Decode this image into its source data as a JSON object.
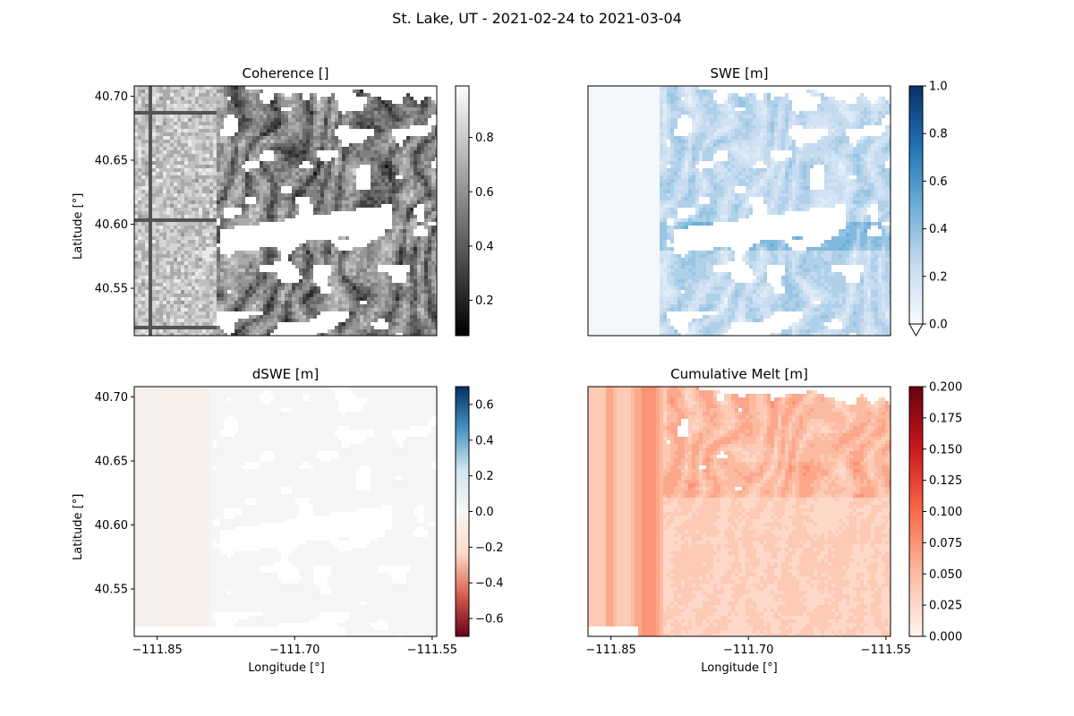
{
  "figure": {
    "suptitle": "St. Lake, UT - 2021-02-24 to 2021-03-04"
  },
  "chart_data": [
    {
      "type": "heatmap",
      "title": "Coherence []",
      "xlabel": "",
      "ylabel": "Latitude [°]",
      "xlim": [
        -111.875,
        -111.545
      ],
      "ylim": [
        40.513,
        40.708
      ],
      "yticks": [
        40.55,
        40.6,
        40.65,
        40.7
      ],
      "ytick_labels": [
        "40.55",
        "40.60",
        "40.65",
        "40.70"
      ],
      "xticks": [],
      "xtick_labels": [],
      "colormap": "Greys_r",
      "colorbar": {
        "min": 0.07,
        "max": 0.99,
        "ticks": [
          0.2,
          0.4,
          0.6,
          0.8
        ],
        "labels": [
          "0.2",
          "0.4",
          "0.6",
          "0.8"
        ],
        "extend": "none"
      },
      "colors": [
        "#000000",
        "#ffffff"
      ]
    },
    {
      "type": "heatmap",
      "title": "SWE [m]",
      "xlabel": "",
      "ylabel": "",
      "xlim": [
        -111.875,
        -111.545
      ],
      "ylim": [
        40.513,
        40.708
      ],
      "yticks": [],
      "ytick_labels": [],
      "xticks": [],
      "xtick_labels": [],
      "colormap": "Blues",
      "colorbar": {
        "min": 0.0,
        "max": 1.0,
        "ticks": [
          0.0,
          0.2,
          0.4,
          0.6,
          0.8,
          1.0
        ],
        "labels": [
          "0.0",
          "0.2",
          "0.4",
          "0.6",
          "0.8",
          "1.0"
        ],
        "extend": "min"
      },
      "colors": [
        "#f7fbff",
        "#c6dbef",
        "#6baed6",
        "#2171b5",
        "#08306b"
      ]
    },
    {
      "type": "heatmap",
      "title": "dSWE [m]",
      "xlabel": "Longitude [°]",
      "ylabel": "Latitude [°]",
      "xlim": [
        -111.875,
        -111.545
      ],
      "ylim": [
        40.513,
        40.708
      ],
      "yticks": [
        40.55,
        40.6,
        40.65,
        40.7
      ],
      "ytick_labels": [
        "40.55",
        "40.60",
        "40.65",
        "40.70"
      ],
      "xticks": [
        -111.85,
        -111.7,
        -111.55
      ],
      "xtick_labels": [
        "−111.85",
        "−111.70",
        "−111.55"
      ],
      "colormap": "RdBu",
      "colorbar": {
        "min": -0.7,
        "max": 0.7,
        "ticks": [
          -0.6,
          -0.4,
          -0.2,
          0.0,
          0.2,
          0.4,
          0.6
        ],
        "labels": [
          "−0.6",
          "−0.4",
          "−0.2",
          "0.0",
          "0.2",
          "0.4",
          "0.6"
        ],
        "extend": "none"
      },
      "colors": [
        "#67001f",
        "#d6604d",
        "#fddbc7",
        "#f7f7f7",
        "#d1e5f0",
        "#4393c3",
        "#053061"
      ]
    },
    {
      "type": "heatmap",
      "title": "Cumulative Melt [m]",
      "xlabel": "Longitude [°]",
      "ylabel": "",
      "xlim": [
        -111.875,
        -111.545
      ],
      "ylim": [
        40.513,
        40.708
      ],
      "yticks": [],
      "ytick_labels": [],
      "xticks": [
        -111.85,
        -111.7,
        -111.55
      ],
      "xtick_labels": [
        "−111.85",
        "−111.70",
        "−111.55"
      ],
      "colormap": "Reds",
      "colorbar": {
        "min": 0.0,
        "max": 0.2,
        "ticks": [
          0.0,
          0.025,
          0.05,
          0.075,
          0.1,
          0.125,
          0.15,
          0.175,
          0.2
        ],
        "labels": [
          "0.000",
          "0.025",
          "0.050",
          "0.075",
          "0.100",
          "0.125",
          "0.150",
          "0.175",
          "0.200"
        ],
        "extend": "none"
      },
      "colors": [
        "#fff5f0",
        "#fcbba1",
        "#fb6a4a",
        "#cb181d",
        "#67000d"
      ]
    }
  ]
}
